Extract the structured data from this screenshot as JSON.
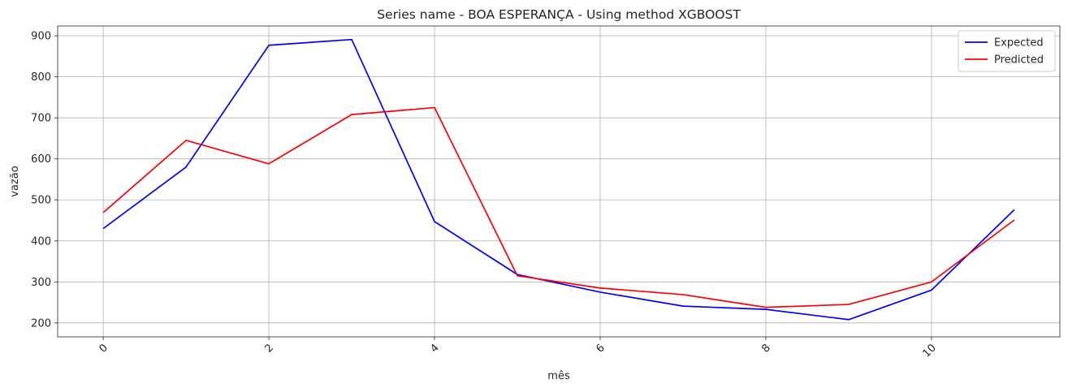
{
  "chart_data": {
    "type": "line",
    "title": "Series name - BOA ESPERANÇA - Using method XGBOOST",
    "xlabel": "mês",
    "ylabel": "vazão",
    "x": [
      0,
      1,
      2,
      3,
      4,
      5,
      6,
      7,
      8,
      9,
      10,
      11
    ],
    "xlim": [
      -0.55,
      11.55
    ],
    "ylim": [
      166,
      924
    ],
    "xticks": [
      0,
      2,
      4,
      6,
      8,
      10
    ],
    "yticks": [
      200,
      300,
      400,
      500,
      600,
      700,
      800,
      900
    ],
    "xtick_labels": [
      "0",
      "2",
      "4",
      "6",
      "8",
      "10"
    ],
    "ytick_labels": [
      "200",
      "300",
      "400",
      "500",
      "600",
      "700",
      "800",
      "900"
    ],
    "grid": true,
    "legend_position": "top-right",
    "series": [
      {
        "name": "Expected",
        "color": "#0000ff",
        "values": [
          430,
          580,
          877,
          891,
          447,
          318,
          275,
          241,
          233,
          208,
          280,
          476
        ]
      },
      {
        "name": "Predicted",
        "color": "#ff0000",
        "values": [
          469,
          645,
          588,
          708,
          725,
          315,
          285,
          269,
          238,
          245,
          300,
          451
        ]
      }
    ]
  }
}
